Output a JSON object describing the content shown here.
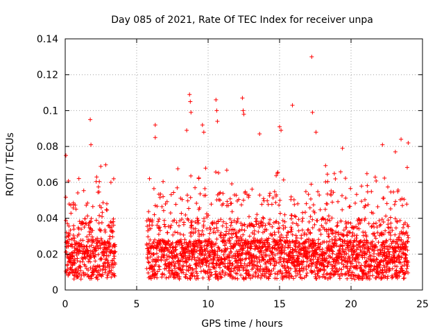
{
  "chart_data": {
    "type": "scatter",
    "title": "Day 085 of 2021, Rate Of TEC Index for receiver unpa",
    "xlabel": "GPS time / hours",
    "ylabel": "ROTI / TECUs",
    "xlim": [
      0,
      25
    ],
    "ylim": [
      0,
      0.14
    ],
    "x_ticks": [
      0,
      5,
      10,
      15,
      20,
      25
    ],
    "x_tick_labels": [
      "0",
      "5",
      "10",
      "15",
      "20",
      "25"
    ],
    "y_ticks": [
      0,
      0.02,
      0.04,
      0.06,
      0.08,
      0.1,
      0.12,
      0.14
    ],
    "y_tick_labels": [
      "0",
      "0.02",
      "0.04",
      "0.06",
      "0.08",
      "0.1",
      "0.12",
      "0.14"
    ],
    "grid": true,
    "marker": "plus",
    "color": "#ff0000",
    "data_gap_hours": [
      3.5,
      5.7
    ],
    "series": [
      {
        "points": [
          [
            0.05,
            0.075
          ],
          [
            1.75,
            0.095
          ],
          [
            1.8,
            0.081
          ],
          [
            2.2,
            0.063
          ],
          [
            3.2,
            0.06
          ],
          [
            6.3,
            0.092
          ],
          [
            6.3,
            0.085
          ],
          [
            8.5,
            0.089
          ],
          [
            8.7,
            0.109
          ],
          [
            8.75,
            0.105
          ],
          [
            8.8,
            0.099
          ],
          [
            9.6,
            0.092
          ],
          [
            9.7,
            0.088
          ],
          [
            10.55,
            0.106
          ],
          [
            10.6,
            0.1
          ],
          [
            10.65,
            0.094
          ],
          [
            12.4,
            0.107
          ],
          [
            12.45,
            0.1
          ],
          [
            12.5,
            0.098
          ],
          [
            13.6,
            0.087
          ],
          [
            15.0,
            0.091
          ],
          [
            15.1,
            0.089
          ],
          [
            15.9,
            0.103
          ],
          [
            17.25,
            0.13
          ],
          [
            17.3,
            0.099
          ],
          [
            17.55,
            0.088
          ],
          [
            19.4,
            0.079
          ],
          [
            22.2,
            0.081
          ],
          [
            23.1,
            0.077
          ],
          [
            23.5,
            0.084
          ],
          [
            24.0,
            0.082
          ]
        ]
      }
    ]
  }
}
